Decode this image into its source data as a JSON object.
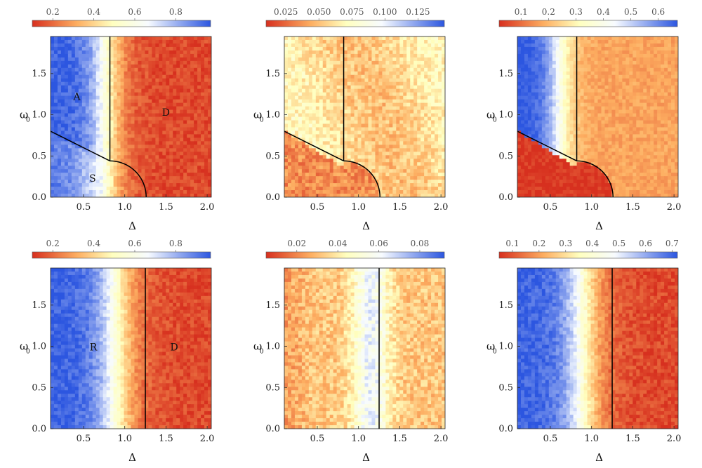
{
  "figure": {
    "description_free": true,
    "panel_order": [
      "top-left",
      "top-middle",
      "top-right",
      "bottom-left",
      "bottom-middle",
      "bottom-right"
    ]
  },
  "colors": {
    "low": "#d7301f",
    "mid_low": "#fdae61",
    "mid": "#ffffbf",
    "mid_high": "#f7fbff",
    "high": "#2c56e0",
    "boundary": "#000000"
  },
  "chart_data": [
    {
      "type": "heatmap",
      "title": "",
      "xlabel": "Δ",
      "ylabel": "ω",
      "ylabel_sub": "0",
      "xlim": [
        0.1,
        2.05
      ],
      "ylim": [
        0.0,
        1.95
      ],
      "xticks": [
        0.5,
        1.0,
        1.5,
        2.0
      ],
      "xtick_labels": [
        "0.5",
        "1.0",
        "1.5",
        "2.0"
      ],
      "yticks": [
        0.0,
        0.5,
        1.0,
        1.5
      ],
      "ytick_labels": [
        "0.0",
        "0.5",
        "1.0",
        "1.5"
      ],
      "colorbar": {
        "min": 0.1,
        "max": 0.97,
        "ticks": [
          0.2,
          0.4,
          0.6,
          0.8
        ],
        "tick_labels": [
          "0.2",
          "0.4",
          "0.6",
          "0.8"
        ]
      },
      "field": {
        "kind": "phase",
        "transition_delta": 0.78,
        "width": 0.12,
        "s_region_value": 0.6,
        "noise": 0.05
      },
      "boundaries": "phase",
      "regions": [
        {
          "label": "A",
          "x": 0.42,
          "y": 1.22
        },
        {
          "label": "D",
          "x": 1.5,
          "y": 1.03
        },
        {
          "label": "S",
          "x": 0.61,
          "y": 0.23
        }
      ]
    },
    {
      "type": "heatmap",
      "title": "",
      "xlabel": "Δ",
      "ylabel": "ω",
      "ylabel_sub": "0",
      "xlim": [
        0.1,
        2.05
      ],
      "ylim": [
        0.0,
        1.95
      ],
      "xticks": [
        0.5,
        1.0,
        1.5,
        2.0
      ],
      "xtick_labels": [
        "0.5",
        "1.0",
        "1.5",
        "2.0"
      ],
      "yticks": [
        0.0,
        0.5,
        1.0,
        1.5
      ],
      "ytick_labels": [
        "0.0",
        "0.5",
        "1.0",
        "1.5"
      ],
      "colorbar": {
        "min": 0.01,
        "max": 0.145,
        "ticks": [
          0.025,
          0.05,
          0.075,
          0.1,
          0.125
        ],
        "tick_labels": [
          "0.025",
          "0.050",
          "0.075",
          "0.100",
          "0.125"
        ]
      },
      "field": {
        "kind": "fluct_phase",
        "base": 0.06,
        "s_region_value": 0.035,
        "noise": 0.012
      },
      "boundaries": "phase",
      "regions": []
    },
    {
      "type": "heatmap",
      "title": "",
      "xlabel": "Δ",
      "ylabel": "ω",
      "ylabel_sub": "0",
      "xlim": [
        0.1,
        2.05
      ],
      "ylim": [
        0.0,
        1.95
      ],
      "xticks": [
        0.5,
        1.0,
        1.5,
        2.0
      ],
      "xtick_labels": [
        "0.5",
        "1.0",
        "1.5",
        "2.0"
      ],
      "yticks": [
        0.0,
        0.5,
        1.0,
        1.5
      ],
      "ytick_labels": [
        "0.0",
        "0.5",
        "1.0",
        "1.5"
      ],
      "colorbar": {
        "min": 0.02,
        "max": 0.67,
        "ticks": [
          0.1,
          0.2,
          0.3,
          0.4,
          0.5,
          0.6
        ],
        "tick_labels": [
          "0.1",
          "0.2",
          "0.3",
          "0.4",
          "0.5",
          "0.6"
        ]
      },
      "field": {
        "kind": "phase_sep",
        "transition_delta": 0.6,
        "width": 0.1,
        "right_value": 0.17,
        "s_region_value": 0.03,
        "noise": 0.03
      },
      "boundaries": "phase",
      "regions": []
    },
    {
      "type": "heatmap",
      "title": "",
      "xlabel": "Δ",
      "ylabel": "ω",
      "ylabel_sub": "0",
      "xlim": [
        0.1,
        2.05
      ],
      "ylim": [
        0.0,
        1.95
      ],
      "xticks": [
        0.5,
        1.0,
        1.5,
        2.0
      ],
      "xtick_labels": [
        "0.5",
        "1.0",
        "1.5",
        "2.0"
      ],
      "yticks": [
        0.0,
        0.5,
        1.0,
        1.5
      ],
      "ytick_labels": [
        "0.0",
        "0.5",
        "1.0",
        "1.5"
      ],
      "colorbar": {
        "min": 0.1,
        "max": 0.97,
        "ticks": [
          0.2,
          0.4,
          0.6,
          0.8
        ],
        "tick_labels": [
          "0.2",
          "0.4",
          "0.6",
          "0.8"
        ]
      },
      "field": {
        "kind": "vertical",
        "transition_delta": 0.9,
        "width": 0.14,
        "noise": 0.05
      },
      "boundaries": "vertical",
      "boundary_delta": 1.25,
      "regions": [
        {
          "label": "R",
          "x": 0.62,
          "y": 0.99
        },
        {
          "label": "D",
          "x": 1.6,
          "y": 0.99
        }
      ]
    },
    {
      "type": "heatmap",
      "title": "",
      "xlabel": "Δ",
      "ylabel": "ω",
      "ylabel_sub": "0",
      "xlim": [
        0.1,
        2.05
      ],
      "ylim": [
        0.0,
        1.95
      ],
      "xticks": [
        0.5,
        1.0,
        1.5,
        2.0
      ],
      "xtick_labels": [
        "0.5",
        "1.0",
        "1.5",
        "2.0"
      ],
      "yticks": [
        0.0,
        0.5,
        1.0,
        1.5
      ],
      "ytick_labels": [
        "0.0",
        "0.5",
        "1.0",
        "1.5"
      ],
      "colorbar": {
        "min": 0.005,
        "max": 0.092,
        "ticks": [
          0.02,
          0.04,
          0.06,
          0.08
        ],
        "tick_labels": [
          "0.02",
          "0.04",
          "0.06",
          "0.08"
        ]
      },
      "field": {
        "kind": "peak",
        "center_delta": 1.15,
        "peak_value": 0.062,
        "base": 0.032,
        "noise": 0.008
      },
      "boundaries": "vertical",
      "boundary_delta": 1.25,
      "regions": []
    },
    {
      "type": "heatmap",
      "title": "",
      "xlabel": "Δ",
      "ylabel": "ω",
      "ylabel_sub": "0",
      "xlim": [
        0.1,
        2.05
      ],
      "ylim": [
        0.0,
        1.95
      ],
      "xticks": [
        0.5,
        1.0,
        1.5,
        2.0
      ],
      "xtick_labels": [
        "0.5",
        "1.0",
        "1.5",
        "2.0"
      ],
      "yticks": [
        0.0,
        0.5,
        1.0,
        1.5
      ],
      "ytick_labels": [
        "0.0",
        "0.5",
        "1.0",
        "1.5"
      ],
      "colorbar": {
        "min": 0.05,
        "max": 0.72,
        "ticks": [
          0.1,
          0.2,
          0.3,
          0.4,
          0.5,
          0.6,
          0.7
        ],
        "tick_labels": [
          "0.1",
          "0.2",
          "0.3",
          "0.4",
          "0.5",
          "0.6",
          "0.7"
        ]
      },
      "field": {
        "kind": "vertical",
        "transition_delta": 0.9,
        "width": 0.14,
        "noise": 0.04
      },
      "boundaries": "vertical",
      "boundary_delta": 1.25,
      "regions": []
    }
  ]
}
